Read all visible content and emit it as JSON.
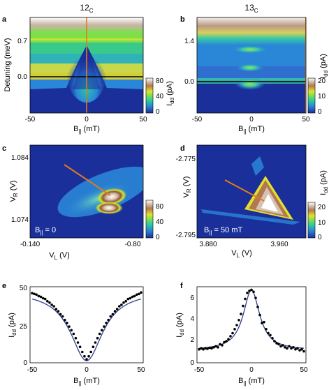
{
  "figure": {
    "col_titles": [
      {
        "main": "12",
        "sub": "C"
      },
      {
        "main": "13",
        "sub": "C"
      }
    ],
    "panels": {
      "a": {
        "letter": "a",
        "xlabel": {
          "main": "B",
          "sub": "||",
          "unit": " (mT)"
        },
        "ylabel": "Detuning (meV)",
        "xticks": [
          "-50",
          "0",
          "50"
        ],
        "yticks": [
          "0.7",
          "0.0"
        ],
        "cbar_label": {
          "main": "I",
          "sub": "dd",
          "unit": " (pA)"
        },
        "cbar_ticks": [
          "80",
          "40",
          "0"
        ]
      },
      "b": {
        "letter": "b",
        "xlabel": {
          "main": "B",
          "sub": "||",
          "unit": " (mT)"
        },
        "xticks": [
          "-50",
          "0",
          "50"
        ],
        "yticks": [
          "1.4",
          "0.0"
        ],
        "cbar_label": {
          "main": "I",
          "sub": "dd",
          "unit": " (pA)"
        },
        "cbar_ticks": [
          "20",
          "10",
          "0"
        ]
      },
      "c": {
        "letter": "c",
        "xlabel": {
          "main": "V",
          "sub": "L",
          "unit": " (V)"
        },
        "ylabel": {
          "main": "V",
          "sub": "R",
          "unit": " (V)"
        },
        "xticks": [
          "-0.140",
          "-0.80"
        ],
        "yticks": [
          "1.084",
          "1.074"
        ],
        "inset": {
          "main": "B",
          "sub": "||",
          "rest": " = 0"
        },
        "cbar_label": {
          "main": "I",
          "sub": "dd",
          "unit": " (pA)"
        },
        "cbar_ticks": [
          "80",
          "40",
          "0"
        ]
      },
      "d": {
        "letter": "d",
        "xlabel": {
          "main": "V",
          "sub": "L",
          "unit": " (V)"
        },
        "ylabel": {
          "main": "V",
          "sub": "R",
          "unit": " (V)"
        },
        "xticks": [
          "3.880",
          "3.960"
        ],
        "yticks": [
          "-2.775",
          "-2.795"
        ],
        "inset": {
          "main": "B",
          "sub": "||",
          "rest": " = 50 mT"
        },
        "cbar_label": {
          "main": "I",
          "sub": "dd",
          "unit": " (pA)"
        },
        "cbar_ticks": [
          "20",
          "10",
          "0"
        ]
      },
      "e": {
        "letter": "e",
        "xlabel": {
          "main": "B",
          "sub": "||",
          "unit": " (mT)"
        },
        "ylabel": {
          "main": "I",
          "sub": "dd",
          "unit": " (pA)"
        },
        "xticks": [
          "-50",
          "0",
          "50"
        ],
        "yticks": [
          "50",
          "25",
          "0"
        ]
      },
      "f": {
        "letter": "f",
        "xlabel": {
          "main": "B",
          "sub": "||",
          "unit": " (mT)"
        },
        "ylabel": {
          "main": "I",
          "sub": "dd",
          "unit": " (pA)"
        },
        "xticks": [
          "-50",
          "0",
          "50"
        ],
        "yticks": [
          "6",
          "4",
          "2",
          "0"
        ]
      }
    }
  },
  "chart_data": [
    {
      "panel": "e",
      "type": "scatter",
      "x_range": [
        -50,
        50
      ],
      "y_range": [
        0,
        50
      ],
      "fit": "dip",
      "points": [
        [
          -50,
          47
        ],
        [
          -48,
          46.5
        ],
        [
          -46,
          46
        ],
        [
          -44,
          45
        ],
        [
          -42,
          44.5
        ],
        [
          -40,
          43.5
        ],
        [
          -38,
          43
        ],
        [
          -36,
          41.5
        ],
        [
          -34,
          40.5
        ],
        [
          -32,
          39
        ],
        [
          -30,
          38
        ],
        [
          -28,
          36
        ],
        [
          -26,
          34.5
        ],
        [
          -24,
          32.5
        ],
        [
          -22,
          31
        ],
        [
          -20,
          28.5
        ],
        [
          -18,
          26.5
        ],
        [
          -16,
          24
        ],
        [
          -14,
          21.5
        ],
        [
          -12,
          19
        ],
        [
          -10,
          16
        ],
        [
          -8,
          13
        ],
        [
          -6,
          10
        ],
        [
          -4,
          6.5
        ],
        [
          -2,
          3.5
        ],
        [
          0,
          1.5
        ],
        [
          2,
          3.5
        ],
        [
          4,
          6.5
        ],
        [
          6,
          10
        ],
        [
          8,
          13
        ],
        [
          10,
          16
        ],
        [
          12,
          19
        ],
        [
          14,
          21.5
        ],
        [
          16,
          24
        ],
        [
          18,
          26.5
        ],
        [
          20,
          28.5
        ],
        [
          22,
          31
        ],
        [
          24,
          32.5
        ],
        [
          26,
          34.5
        ],
        [
          28,
          36
        ],
        [
          30,
          38
        ],
        [
          32,
          39
        ],
        [
          34,
          40.5
        ],
        [
          36,
          41.5
        ],
        [
          38,
          43
        ],
        [
          40,
          43.5
        ],
        [
          42,
          44.5
        ],
        [
          44,
          45
        ],
        [
          46,
          46
        ],
        [
          48,
          46.5
        ],
        [
          50,
          47.5
        ]
      ]
    },
    {
      "panel": "f",
      "type": "scatter",
      "x_range": [
        -50,
        50
      ],
      "y_range": [
        0,
        7.2
      ],
      "fit": "lorentzian",
      "points": [
        [
          -50,
          1.2
        ],
        [
          -48,
          1.3
        ],
        [
          -46,
          1.2
        ],
        [
          -44,
          1.3
        ],
        [
          -42,
          1.25
        ],
        [
          -40,
          1.35
        ],
        [
          -38,
          1.3
        ],
        [
          -36,
          1.4
        ],
        [
          -34,
          1.5
        ],
        [
          -32,
          1.4
        ],
        [
          -30,
          1.7
        ],
        [
          -28,
          1.6
        ],
        [
          -26,
          1.9
        ],
        [
          -24,
          2.0
        ],
        [
          -22,
          2.2
        ],
        [
          -20,
          2.5
        ],
        [
          -18,
          2.8
        ],
        [
          -16,
          3.2
        ],
        [
          -14,
          3.6
        ],
        [
          -12,
          4.1
        ],
        [
          -10,
          4.7
        ],
        [
          -8,
          5.5
        ],
        [
          -6,
          6.2
        ],
        [
          -4,
          6.8
        ],
        [
          -2,
          7.0
        ],
        [
          0,
          7.1
        ],
        [
          2,
          6.9
        ],
        [
          4,
          6.3
        ],
        [
          6,
          5.4
        ],
        [
          8,
          4.6
        ],
        [
          10,
          3.8
        ],
        [
          12,
          3.9
        ],
        [
          14,
          3.2
        ],
        [
          16,
          2.8
        ],
        [
          18,
          2.6
        ],
        [
          20,
          2.3
        ],
        [
          22,
          2.0
        ],
        [
          24,
          1.8
        ],
        [
          26,
          1.7
        ],
        [
          28,
          1.5
        ],
        [
          30,
          1.6
        ],
        [
          32,
          1.4
        ],
        [
          34,
          1.3
        ],
        [
          36,
          1.5
        ],
        [
          38,
          1.3
        ],
        [
          40,
          1.4
        ],
        [
          42,
          1.2
        ],
        [
          44,
          1.3
        ],
        [
          46,
          1.1
        ],
        [
          48,
          1.2
        ],
        [
          50,
          1.0
        ]
      ]
    }
  ]
}
